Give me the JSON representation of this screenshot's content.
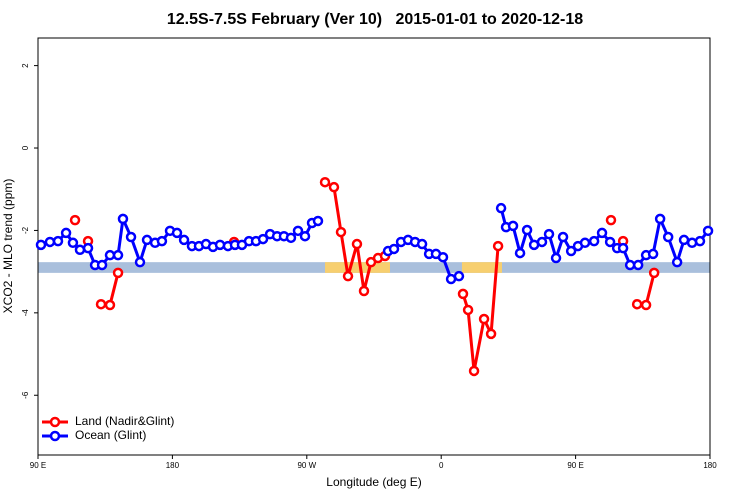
{
  "chart_data": {
    "type": "line",
    "title": "12.5S-7.5S February (Ver 10)   2015-01-01 to 2020-12-18",
    "x_label": "Longitude (deg E)",
    "y_label": "XCO2 - MLO trend (ppm)",
    "xlim": [
      90,
      540
    ],
    "xticks": [
      {
        "value": 90,
        "label": "90 E"
      },
      180,
      {
        "value": 270,
        "label": "90 W"
      },
      {
        "value": 360,
        "label": "0"
      },
      {
        "value": 450,
        "label": "90 E"
      },
      {
        "value": 540,
        "label": "180"
      }
    ],
    "ylim": [
      -7.45,
      2.67
    ],
    "yticks": [
      2,
      0,
      -2,
      -4,
      -6
    ],
    "legend": "bottom-left",
    "band": {
      "ylim": [
        -3.03,
        -2.77
      ],
      "color": "#a9bfdc"
    },
    "highlights": {
      "ranges": [
        [
          282.2,
          325.7
        ],
        [
          373.9,
          400.7
        ]
      ],
      "color": "#f7cf6f"
    },
    "series": [
      {
        "name": "Land (Nadir&Glint)",
        "color": "#ff0000",
        "x": [
          114.8,
          null,
          123.5,
          null,
          132.2,
          138.2,
          143.6,
          null,
          221.3,
          null,
          282.2,
          288.2,
          292.9,
          297.6,
          303.6,
          308.3,
          313.0,
          317.7,
          322.4,
          null,
          374.6,
          378.0,
          382.0,
          388.7,
          393.4,
          398.1,
          null,
          473.7,
          null,
          481.8,
          null,
          491.2,
          497.2,
          502.6
        ],
        "values": [
          -1.75,
          null,
          -2.26,
          null,
          -3.79,
          -3.81,
          -3.03,
          null,
          -2.28,
          null,
          -0.83,
          -0.95,
          -2.04,
          -3.11,
          -2.33,
          -3.47,
          -2.77,
          -2.67,
          -2.62,
          null,
          -3.54,
          -3.93,
          -5.41,
          -4.15,
          -4.51,
          -2.38,
          null,
          -1.75,
          null,
          -2.26,
          null,
          -3.79,
          -3.81,
          -3.03
        ]
      },
      {
        "name": "Ocean (Glint)",
        "color": "#0000ff",
        "x": [
          92.0,
          98.0,
          103.4,
          108.8,
          113.4,
          118.1,
          123.5,
          128.2,
          132.9,
          138.2,
          143.6,
          146.9,
          152.3,
          158.3,
          163.0,
          168.4,
          173.0,
          178.4,
          183.1,
          187.8,
          193.1,
          197.8,
          202.5,
          207.2,
          211.9,
          217.2,
          221.9,
          226.6,
          231.3,
          236.0,
          240.7,
          245.4,
          250.1,
          254.7,
          259.4,
          264.1,
          268.8,
          273.5,
          277.5,
          null,
          324.4,
          328.4,
          333.1,
          337.8,
          342.5,
          347.2,
          351.9,
          356.5,
          361.2,
          366.6,
          371.9,
          null,
          400.1,
          403.4,
          408.1,
          412.8,
          417.5,
          422.2,
          427.5,
          432.2,
          436.9,
          441.6,
          447.0,
          451.6,
          456.3,
          462.4,
          467.7,
          473.1,
          477.8,
          481.8,
          486.5,
          491.9,
          497.2,
          501.9,
          506.6,
          512.0,
          518.0,
          522.6,
          528.0,
          533.3,
          538.7
        ],
        "values": [
          -2.35,
          -2.28,
          -2.26,
          -2.06,
          -2.3,
          -2.47,
          -2.43,
          -2.84,
          -2.84,
          -2.6,
          -2.6,
          -1.72,
          -2.16,
          -2.77,
          -2.23,
          -2.3,
          -2.26,
          -2.01,
          -2.06,
          -2.23,
          -2.38,
          -2.38,
          -2.33,
          -2.4,
          -2.35,
          -2.38,
          -2.35,
          -2.35,
          -2.26,
          -2.26,
          -2.21,
          -2.09,
          -2.14,
          -2.14,
          -2.18,
          -2.01,
          -2.14,
          -1.82,
          -1.77,
          null,
          -2.5,
          -2.45,
          -2.28,
          -2.23,
          -2.28,
          -2.33,
          -2.57,
          -2.57,
          -2.65,
          -3.18,
          -3.11,
          null,
          -1.46,
          -1.92,
          -1.89,
          -2.55,
          -1.99,
          -2.35,
          -2.28,
          -2.09,
          -2.67,
          -2.16,
          -2.5,
          -2.38,
          -2.3,
          -2.26,
          -2.06,
          -2.28,
          -2.43,
          -2.43,
          -2.84,
          -2.84,
          -2.6,
          -2.57,
          -1.72,
          -2.16,
          -2.77,
          -2.23,
          -2.3,
          -2.26,
          -2.01
        ]
      }
    ]
  }
}
